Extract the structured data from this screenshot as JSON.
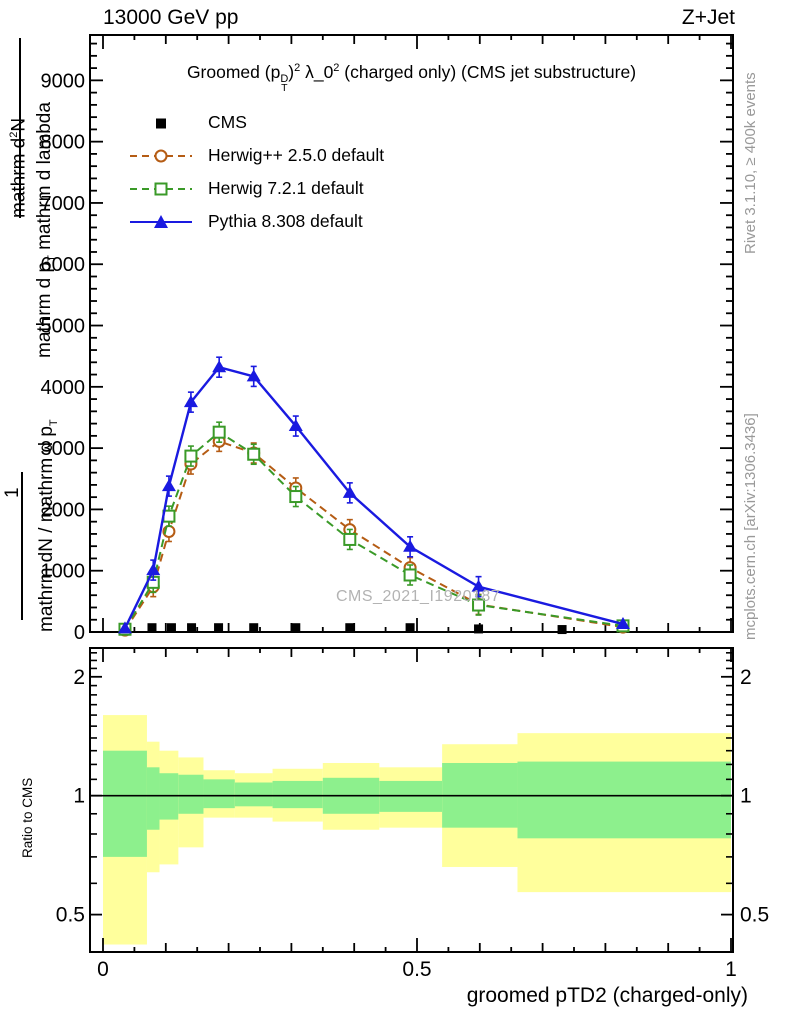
{
  "header": {
    "left": "13000 GeV pp",
    "right": "Z+Jet"
  },
  "plot_title": {
    "pre": "Groomed ",
    "p": "(p",
    "p_sup": "D",
    "p_sub": "T",
    "close": ")",
    "sq": "2",
    "lambda": " λ_0",
    "sq2": "2",
    "rest": "  (charged only) (CMS jet substructure)"
  },
  "watermark": "CMS_2021_I1920187",
  "side_notes": {
    "top": "Rivet 3.1.10, ≥ 400k events",
    "bottom": "mcplots.cern.ch [arXiv:1306.3436]"
  },
  "y_axis_label": {
    "d2n_pre": "mathrm d",
    "d2n_sup": "2",
    "d2n_post": "N",
    "dpt_pre": "mathrm d p",
    "dpt_sub": "T",
    "dpt_post": " mathrm d lambda",
    "one": "1",
    "dn_pre": "mathrm dN / mathrm d p",
    "dn_sub": "T"
  },
  "legend": [
    {
      "label": "CMS",
      "color": "#000000",
      "marker": "square-filled",
      "line": "none"
    },
    {
      "label": "Herwig++ 2.5.0 default",
      "color": "#b55c14",
      "marker": "circle-open",
      "line": "dashed"
    },
    {
      "label": "Herwig 7.2.1 default",
      "color": "#3a9a28",
      "marker": "square-open",
      "line": "dashed"
    },
    {
      "label": "Pythia 8.308 default",
      "color": "#1a1ae0",
      "marker": "triangle-filled",
      "line": "solid"
    }
  ],
  "chart_data": {
    "type": "line",
    "title": "Groomed (p_T^D)^2 lambda_0^2 (charged only) (CMS jet substructure)",
    "xlabel": "groomed pTD2 (charged-only)",
    "ylabel": "1 / (mathrm dN / mathrm d p_T)  mathrm d2N / (mathrm d p_T mathrm d lambda)",
    "xlim": [
      0,
      1
    ],
    "ylim": [
      0,
      9740
    ],
    "grid": false,
    "legend_position": "top-left",
    "x_ticks": {
      "major": [
        0,
        0.5,
        1
      ],
      "labels": [
        "0",
        "0.5",
        "1"
      ],
      "medium_step": 0.1,
      "minor_step": 0.05
    },
    "y_ticks": {
      "major_step": 1000,
      "minor_step": 200,
      "labels": [
        "0",
        "1000",
        "2000",
        "3000",
        "4000",
        "5000",
        "6000",
        "7000",
        "8000",
        "9000"
      ]
    },
    "series": [
      {
        "name": "CMS",
        "color": "#000000",
        "marker": "square-filled",
        "line": "none",
        "x": [
          0.078,
          0.109,
          0.141,
          0.184,
          0.24,
          0.307,
          0.393,
          0.489,
          0.598,
          0.731
        ],
        "y": [
          70,
          70,
          70,
          70,
          70,
          70,
          70,
          70,
          50,
          40
        ]
      },
      {
        "name": "Herwig++ 2.5.0 default",
        "color": "#b55c14",
        "marker": "circle-open",
        "line": "dashed",
        "x": [
          0.035,
          0.08,
          0.105,
          0.14,
          0.185,
          0.24,
          0.307,
          0.393,
          0.489,
          0.598,
          0.828
        ],
        "y": [
          30,
          740,
          1640,
          2740,
          3110,
          2920,
          2350,
          1670,
          1050,
          450,
          80
        ]
      },
      {
        "name": "Herwig 7.2.1 default",
        "color": "#3a9a28",
        "marker": "square-open",
        "line": "dashed",
        "x": [
          0.035,
          0.08,
          0.105,
          0.14,
          0.185,
          0.24,
          0.307,
          0.393,
          0.489,
          0.598,
          0.828
        ],
        "y": [
          45,
          810,
          1890,
          2870,
          3260,
          2900,
          2210,
          1510,
          930,
          440,
          100
        ]
      },
      {
        "name": "Pythia 8.308 default",
        "color": "#1a1ae0",
        "marker": "triangle-filled",
        "line": "solid",
        "x": [
          0.035,
          0.08,
          0.105,
          0.14,
          0.185,
          0.24,
          0.307,
          0.393,
          0.489,
          0.598,
          0.828
        ],
        "y": [
          60,
          1010,
          2380,
          3750,
          4320,
          4170,
          3360,
          2270,
          1390,
          740,
          130
        ]
      }
    ],
    "ratio_panel": {
      "ylabel": "Ratio to CMS",
      "yscale": "log",
      "ylim": [
        0.402,
        2.37
      ],
      "yticks": [
        0.5,
        1,
        2
      ],
      "ytick_labels": [
        "0.5",
        "1",
        "2"
      ],
      "minor_ticks": [
        0.6,
        0.7,
        0.8,
        0.9,
        1.1,
        1.2,
        1.3,
        1.4,
        1.5,
        1.6,
        1.7,
        1.8,
        1.9,
        2.1,
        2.2,
        2.3
      ],
      "reference_line": 1,
      "bin_edges": [
        0,
        0.07,
        0.09,
        0.12,
        0.16,
        0.21,
        0.27,
        0.35,
        0.44,
        0.54,
        0.66,
        1.0
      ],
      "yellow_band": [
        [
          0.42,
          1.6
        ],
        [
          0.64,
          1.37
        ],
        [
          0.67,
          1.3
        ],
        [
          0.74,
          1.25
        ],
        [
          0.88,
          1.16
        ],
        [
          0.88,
          1.14
        ],
        [
          0.86,
          1.17
        ],
        [
          0.82,
          1.21
        ],
        [
          0.83,
          1.18
        ],
        [
          0.66,
          1.35
        ],
        [
          0.57,
          1.44
        ]
      ],
      "green_band": [
        [
          0.7,
          1.3
        ],
        [
          0.82,
          1.18
        ],
        [
          0.87,
          1.14
        ],
        [
          0.9,
          1.13
        ],
        [
          0.93,
          1.1
        ],
        [
          0.94,
          1.08
        ],
        [
          0.93,
          1.09
        ],
        [
          0.9,
          1.11
        ],
        [
          0.91,
          1.09
        ],
        [
          0.83,
          1.21
        ],
        [
          0.78,
          1.22
        ]
      ]
    },
    "band_colors": {
      "yellow": "#ffff9c",
      "green": "#8df08d"
    }
  }
}
